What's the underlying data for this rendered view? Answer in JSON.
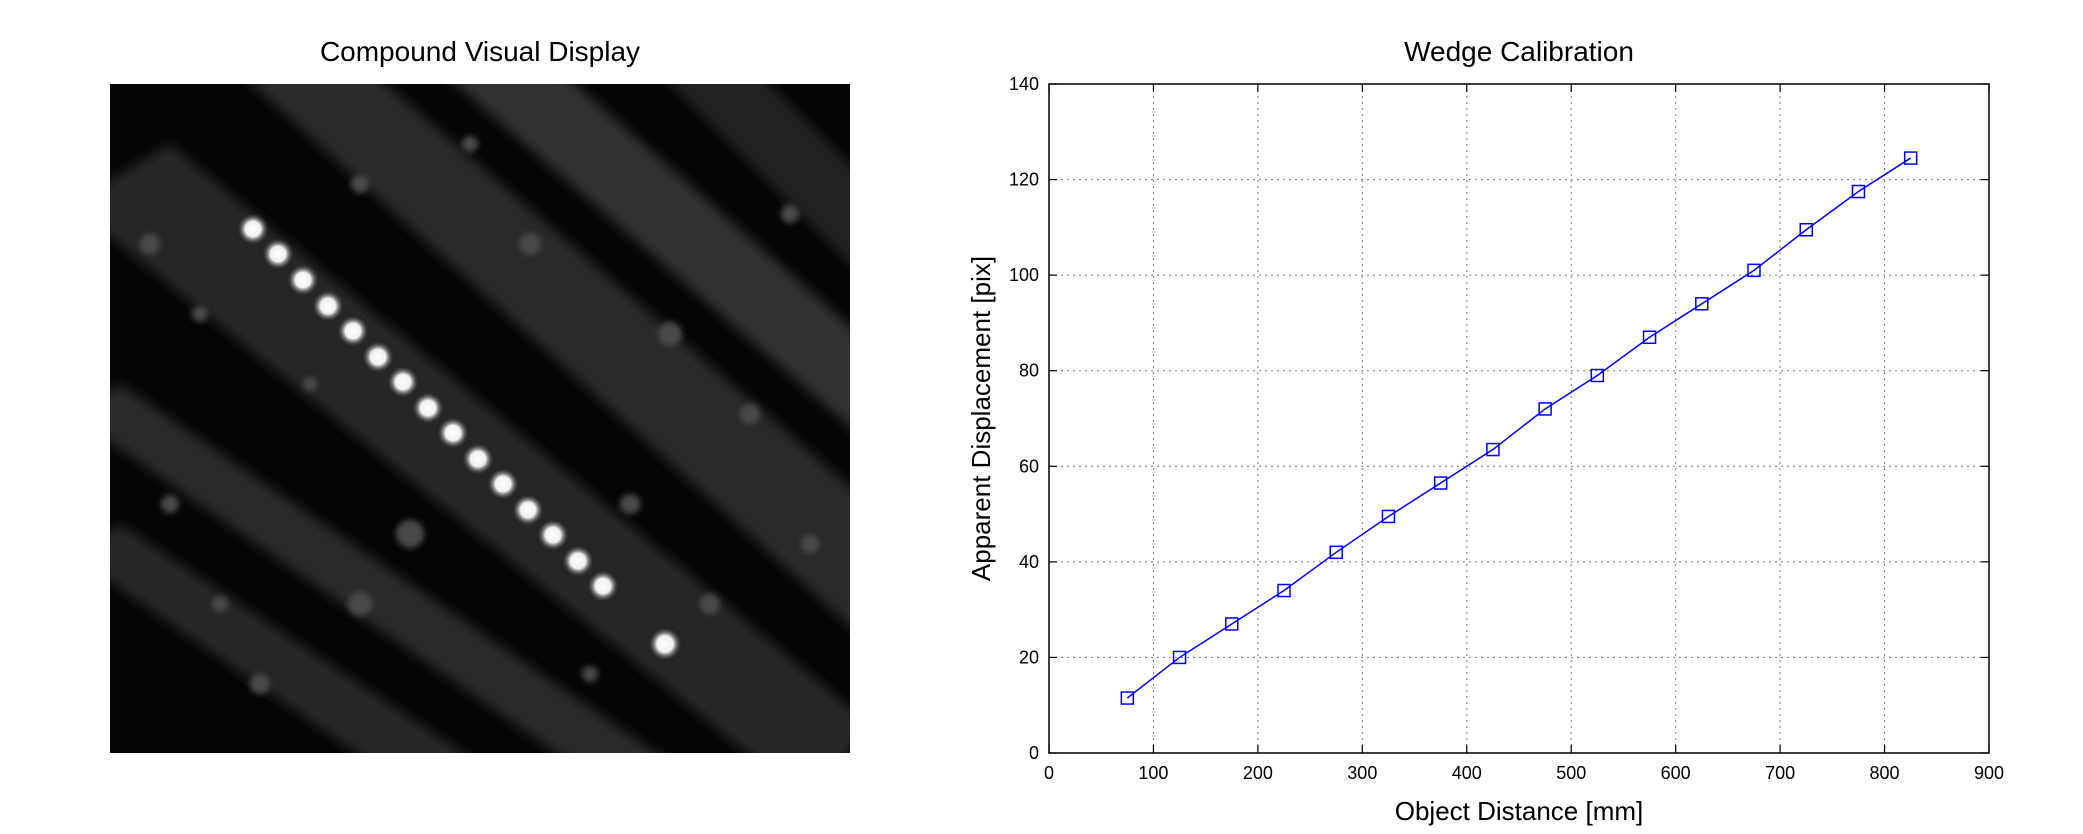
{
  "chart_data": [
    {
      "type": "image",
      "title": "Compound Visual Display",
      "colormap": "grayscale"
    },
    {
      "type": "line",
      "title": "Wedge Calibration",
      "xlabel": "Object Distance [mm]",
      "ylabel": "Apparent Displacement [pix]",
      "xlim": [
        0,
        900
      ],
      "ylim": [
        0,
        140
      ],
      "xticks": [
        0,
        100,
        200,
        300,
        400,
        500,
        600,
        700,
        800,
        900
      ],
      "yticks": [
        0,
        20,
        40,
        60,
        80,
        100,
        120,
        140
      ],
      "grid": true,
      "marker": "square",
      "series_color": "#0000ff",
      "x": [
        75,
        125,
        175,
        225,
        275,
        325,
        375,
        425,
        475,
        525,
        575,
        625,
        675,
        725,
        775,
        825
      ],
      "y": [
        11.5,
        20,
        27,
        34,
        42,
        49.5,
        56.5,
        63.5,
        72,
        79,
        87,
        94,
        101,
        109.5,
        117.5,
        124.5
      ]
    }
  ]
}
